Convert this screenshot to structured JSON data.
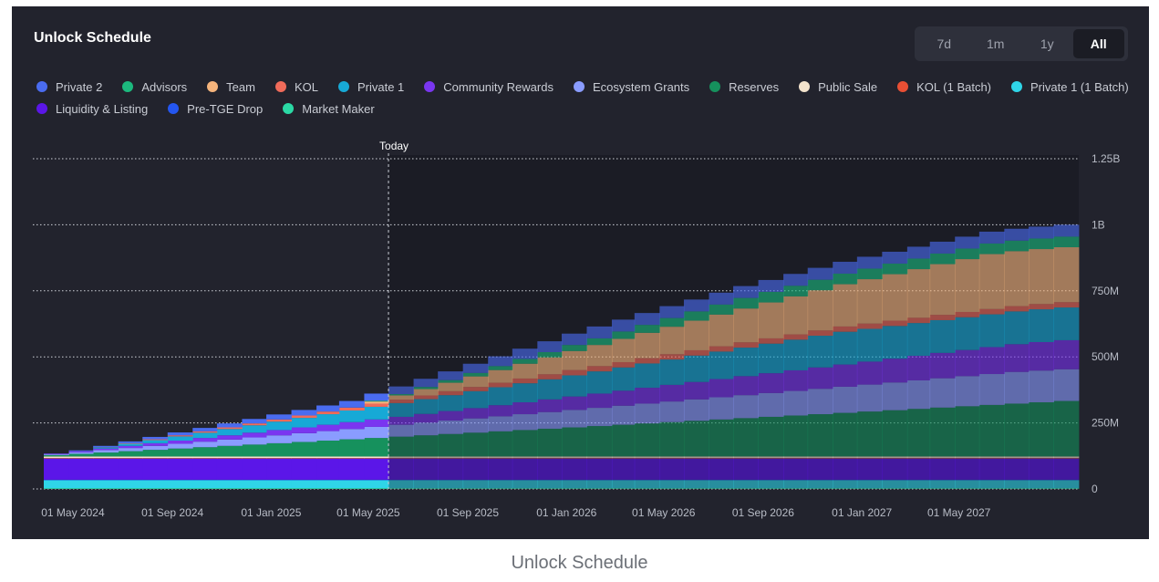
{
  "header": {
    "title": "Unlock Schedule",
    "ranges": [
      "7d",
      "1m",
      "1y",
      "All"
    ],
    "active_range": "All"
  },
  "footer_caption": "Unlock Schedule",
  "colors": {
    "card_bg": "#22232d",
    "future_bg": "#1b1c25",
    "grid": "#d0d3da",
    "axis_text": "#b8bcc6"
  },
  "chart_data": {
    "type": "area",
    "stacked": true,
    "step": true,
    "title": "Unlock Schedule",
    "today_label": "Today",
    "today": "2025-05-26",
    "x_ticks": [
      "01 May 2024",
      "01 Sep 2024",
      "01 Jan 2025",
      "01 May 2025",
      "01 Sep 2025",
      "01 Jan 2026",
      "01 May 2026",
      "01 Sep 2026",
      "01 Jan 2027",
      "01 May 2027"
    ],
    "y_ticks": [
      "0",
      "250M",
      "500M",
      "750M",
      "1B",
      "1.25B"
    ],
    "y_tick_values": [
      0,
      250,
      500,
      750,
      1000,
      1250
    ],
    "y_unit": "M",
    "ylim": [
      0,
      1250
    ],
    "grid": true,
    "legend_position": "top-left",
    "x": [
      "2024-03-26",
      "2024-04-26",
      "2024-05-26",
      "2024-06-26",
      "2024-07-26",
      "2024-08-26",
      "2024-09-26",
      "2024-10-26",
      "2024-11-26",
      "2024-12-26",
      "2025-01-26",
      "2025-02-26",
      "2025-03-26",
      "2025-04-26",
      "2025-05-26",
      "2025-06-26",
      "2025-07-26",
      "2025-08-26",
      "2025-09-26",
      "2025-10-26",
      "2025-11-26",
      "2025-12-26",
      "2026-01-26",
      "2026-02-26",
      "2026-03-26",
      "2026-04-26",
      "2026-05-26",
      "2026-06-26",
      "2026-07-26",
      "2026-08-26",
      "2026-09-26",
      "2026-10-26",
      "2026-11-26",
      "2026-12-26",
      "2027-01-26",
      "2027-02-26",
      "2027-03-26",
      "2027-04-26",
      "2027-05-26",
      "2027-06-26",
      "2027-07-26",
      "2027-08-26"
    ],
    "series": [
      {
        "name": "Market Maker",
        "color": "#2bd9a5",
        "values": [
          3,
          3,
          3,
          3,
          3,
          3,
          3,
          3,
          3,
          3,
          3,
          3,
          3,
          3,
          3,
          3,
          3,
          3,
          3,
          3,
          3,
          3,
          3,
          3,
          3,
          3,
          3,
          3,
          3,
          3,
          3,
          3,
          3,
          3,
          3,
          3,
          3,
          3,
          3,
          3,
          3,
          3
        ]
      },
      {
        "name": "Private 1 (1 Batch)",
        "color": "#2fd5e8",
        "values": [
          30,
          30,
          30,
          30,
          30,
          30,
          30,
          30,
          30,
          30,
          30,
          30,
          30,
          30,
          30,
          30,
          30,
          30,
          30,
          30,
          30,
          30,
          30,
          30,
          30,
          30,
          30,
          30,
          30,
          30,
          30,
          30,
          30,
          30,
          30,
          30,
          30,
          30,
          30,
          30,
          30,
          30
        ]
      },
      {
        "name": "Pre-TGE Drop",
        "color": "#2456f0",
        "values": [
          2,
          2,
          2,
          2,
          2,
          2,
          2,
          2,
          2,
          2,
          2,
          2,
          2,
          2,
          2,
          2,
          2,
          2,
          2,
          2,
          2,
          2,
          2,
          2,
          2,
          2,
          2,
          2,
          2,
          2,
          2,
          2,
          2,
          2,
          2,
          2,
          2,
          2,
          2,
          2,
          2,
          2
        ]
      },
      {
        "name": "Liquidity & Listing",
        "color": "#5b16e8",
        "values": [
          80,
          80,
          80,
          80,
          80,
          80,
          80,
          80,
          80,
          80,
          80,
          80,
          80,
          80,
          80,
          80,
          80,
          80,
          80,
          80,
          80,
          80,
          80,
          80,
          80,
          80,
          80,
          80,
          80,
          80,
          80,
          80,
          80,
          80,
          80,
          80,
          80,
          80,
          80,
          80,
          80,
          80
        ]
      },
      {
        "name": "KOL (1 Batch)",
        "color": "#e84f34",
        "values": [
          2,
          2,
          2,
          2,
          2,
          2,
          2,
          2,
          2,
          2,
          2,
          2,
          2,
          2,
          2,
          2,
          2,
          2,
          2,
          2,
          2,
          2,
          2,
          2,
          2,
          2,
          2,
          2,
          2,
          2,
          2,
          2,
          2,
          2,
          2,
          2,
          2,
          2,
          2,
          2,
          2,
          2
        ]
      },
      {
        "name": "Public Sale",
        "color": "#f3e3cc",
        "values": [
          6,
          6,
          6,
          6,
          6,
          6,
          6,
          6,
          6,
          6,
          6,
          6,
          6,
          6,
          6,
          6,
          6,
          6,
          6,
          6,
          6,
          6,
          6,
          6,
          6,
          6,
          6,
          6,
          6,
          6,
          6,
          6,
          6,
          6,
          6,
          6,
          6,
          6,
          6,
          6,
          6,
          6
        ]
      },
      {
        "name": "Reserves",
        "color": "#16915d",
        "values": [
          5,
          10,
          15,
          20,
          25,
          30,
          35,
          40,
          45,
          50,
          55,
          60,
          65,
          70,
          75,
          80,
          85,
          90,
          95,
          100,
          105,
          110,
          115,
          120,
          125,
          130,
          135,
          140,
          145,
          150,
          155,
          160,
          165,
          170,
          175,
          180,
          185,
          190,
          195,
          200,
          205,
          210
        ]
      },
      {
        "name": "Ecosystem Grants",
        "color": "#8a9cff",
        "values": [
          3,
          6,
          9,
          12,
          15,
          18,
          21,
          24,
          27,
          30,
          33,
          36,
          39,
          42,
          45,
          48,
          51,
          54,
          57,
          60,
          63,
          66,
          69,
          72,
          75,
          78,
          81,
          84,
          87,
          90,
          93,
          96,
          99,
          102,
          105,
          108,
          111,
          114,
          117,
          120,
          120,
          120
        ]
      },
      {
        "name": "Community Rewards",
        "color": "#7a36f0",
        "values": [
          2,
          4,
          6,
          8,
          10,
          12,
          14,
          16,
          18,
          20,
          22,
          24,
          26,
          28,
          30,
          33,
          36,
          39,
          42,
          45,
          48,
          51,
          54,
          57,
          60,
          63,
          66,
          69,
          72,
          75,
          78,
          81,
          84,
          87,
          90,
          93,
          96,
          99,
          102,
          105,
          108,
          110
        ]
      },
      {
        "name": "Private 1",
        "color": "#17a9d6",
        "values": [
          0,
          0,
          4,
          8,
          12,
          16,
          20,
          24,
          28,
          32,
          36,
          40,
          44,
          48,
          52,
          56,
          60,
          64,
          68,
          72,
          76,
          80,
          84,
          88,
          92,
          96,
          100,
          104,
          108,
          112,
          116,
          120,
          124,
          124,
          124,
          124,
          124,
          124,
          124,
          124,
          124,
          124
        ]
      },
      {
        "name": "KOL",
        "color": "#f06b5a",
        "values": [
          0,
          0,
          1,
          2,
          3,
          4,
          5,
          6,
          7,
          8,
          9,
          10,
          11,
          12,
          13,
          14,
          15,
          16,
          17,
          18,
          19,
          20,
          20,
          20,
          20,
          20,
          20,
          20,
          20,
          20,
          20,
          20,
          20,
          20,
          20,
          20,
          20,
          20,
          20,
          20,
          20,
          20
        ]
      },
      {
        "name": "Team",
        "color": "#f5b47c",
        "values": [
          0,
          0,
          0,
          0,
          0,
          0,
          0,
          0,
          0,
          0,
          0,
          0,
          0,
          8,
          16,
          24,
          32,
          40,
          48,
          56,
          64,
          72,
          80,
          88,
          96,
          104,
          112,
          120,
          128,
          136,
          144,
          152,
          160,
          168,
          176,
          184,
          192,
          200,
          208,
          208,
          208,
          208
        ]
      },
      {
        "name": "Advisors",
        "color": "#1cb97e",
        "values": [
          0,
          0,
          0,
          0,
          0,
          0,
          0,
          0,
          0,
          0,
          0,
          0,
          0,
          3,
          5,
          8,
          10,
          13,
          15,
          18,
          20,
          23,
          25,
          28,
          30,
          33,
          35,
          38,
          40,
          40,
          40,
          40,
          40,
          40,
          40,
          40,
          40,
          40,
          40,
          40,
          40,
          40
        ]
      },
      {
        "name": "Private 2",
        "color": "#4a6cf0",
        "values": [
          1,
          3,
          5,
          7,
          9,
          11,
          13,
          15,
          17,
          19,
          21,
          23,
          25,
          27,
          29,
          31,
          33,
          35,
          37,
          39,
          41,
          43,
          45,
          45,
          45,
          45,
          45,
          45,
          45,
          45,
          45,
          45,
          45,
          45,
          45,
          45,
          45,
          45,
          45,
          45,
          45,
          45
        ]
      }
    ],
    "legend_order": [
      "Private 2",
      "Advisors",
      "Team",
      "KOL",
      "Private 1",
      "Community Rewards",
      "Ecosystem Grants",
      "Reserves",
      "Public Sale",
      "KOL (1 Batch)",
      "Private 1 (1 Batch)",
      "Liquidity & Listing",
      "Pre-TGE Drop",
      "Market Maker"
    ]
  }
}
